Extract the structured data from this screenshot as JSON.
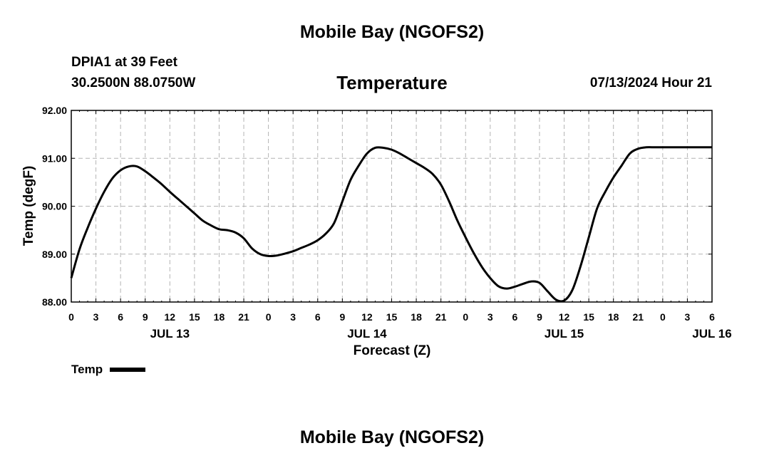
{
  "header": {
    "title": "Mobile Bay (NGOFS2)",
    "station": "DPIA1 at 39 Feet",
    "coordinates": "30.2500N  88.0750W",
    "variable": "Temperature",
    "run_time": "07/13/2024 Hour 21"
  },
  "footer": {
    "title": "Mobile Bay (NGOFS2)"
  },
  "chart_data": {
    "type": "line",
    "title": "Temperature",
    "xlabel": "Forecast (Z)",
    "ylabel": "Temp (degF)",
    "ylim": [
      88.0,
      92.0
    ],
    "xlim_hours": [
      0,
      78
    ],
    "y_ticks": [
      "88.00",
      "89.00",
      "90.00",
      "91.00",
      "92.00"
    ],
    "x_ticks": [
      "0",
      "3",
      "6",
      "9",
      "12",
      "15",
      "18",
      "21",
      "0",
      "3",
      "6",
      "9",
      "12",
      "15",
      "18",
      "21",
      "0",
      "3",
      "6",
      "9",
      "12",
      "15",
      "18",
      "21",
      "0",
      "3",
      "6"
    ],
    "date_labels": [
      {
        "label": "JUL 13",
        "hour": 12
      },
      {
        "label": "JUL 14",
        "hour": 36
      },
      {
        "label": "JUL 15",
        "hour": 60
      },
      {
        "label": "JUL 16",
        "hour": 78
      }
    ],
    "grid": true,
    "legend": "bottom-left",
    "series": [
      {
        "name": "Temp",
        "color": "#000000",
        "x": [
          0,
          1,
          2,
          3,
          4,
          5,
          6,
          7,
          8,
          9,
          10,
          11,
          12,
          13,
          14,
          15,
          16,
          17,
          18,
          19,
          20,
          21,
          22,
          23,
          24,
          25,
          26,
          27,
          28,
          29,
          30,
          31,
          32,
          33,
          34,
          35,
          36,
          37,
          38,
          39,
          40,
          41,
          42,
          43,
          44,
          45,
          46,
          47,
          48,
          49,
          50,
          51,
          52,
          53,
          54,
          55,
          56,
          57,
          58,
          59,
          60,
          61,
          62,
          63,
          64,
          65,
          66,
          67,
          68,
          69,
          70,
          71,
          72,
          73,
          74,
          75,
          76,
          77,
          78
        ],
        "values": [
          88.5,
          89.1,
          89.55,
          89.95,
          90.3,
          90.58,
          90.75,
          90.83,
          90.83,
          90.73,
          90.6,
          90.46,
          90.3,
          90.15,
          90.0,
          89.85,
          89.7,
          89.6,
          89.52,
          89.5,
          89.45,
          89.33,
          89.12,
          89.0,
          88.96,
          88.97,
          89.01,
          89.06,
          89.13,
          89.2,
          89.29,
          89.43,
          89.65,
          90.1,
          90.55,
          90.85,
          91.1,
          91.22,
          91.22,
          91.18,
          91.1,
          91.0,
          90.9,
          90.8,
          90.67,
          90.45,
          90.1,
          89.7,
          89.35,
          89.02,
          88.73,
          88.5,
          88.33,
          88.28,
          88.32,
          88.38,
          88.43,
          88.4,
          88.22,
          88.05,
          88.03,
          88.25,
          88.75,
          89.35,
          89.95,
          90.3,
          90.6,
          90.85,
          91.1,
          91.2,
          91.23,
          91.23,
          91.23,
          91.23,
          91.23,
          91.23,
          91.23,
          91.23,
          91.23
        ]
      }
    ]
  }
}
